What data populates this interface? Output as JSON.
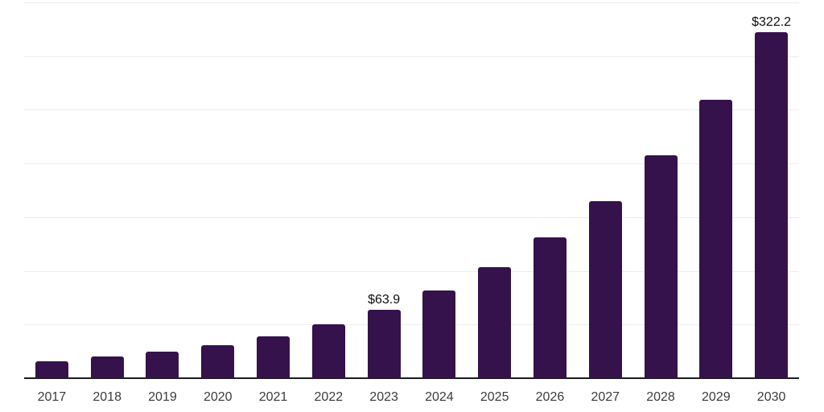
{
  "chart_data": {
    "type": "bar",
    "title": "",
    "xlabel": "",
    "ylabel": "",
    "categories": [
      "2017",
      "2018",
      "2019",
      "2020",
      "2021",
      "2022",
      "2023",
      "2024",
      "2025",
      "2026",
      "2027",
      "2028",
      "2029",
      "2030"
    ],
    "values": [
      15.8,
      19.9,
      25.1,
      31.1,
      39.3,
      50.1,
      63.9,
      81.9,
      103.5,
      130.9,
      165.1,
      207.6,
      259.5,
      322.2
    ],
    "data_labels": [
      {
        "category": "2023",
        "text": "$63.9"
      },
      {
        "category": "2030",
        "text": "$322.2"
      }
    ],
    "ylim": [
      0,
      350
    ],
    "gridline_step": 50,
    "grid": "horizontal",
    "legend": "none",
    "colors": {
      "bar": "#35124B",
      "axis_line": "#1c1c1c",
      "gridline": "#ededed",
      "data_label": "#0d0d0d",
      "tick_label": "#3b3b3b",
      "background": "#ffffff"
    }
  }
}
